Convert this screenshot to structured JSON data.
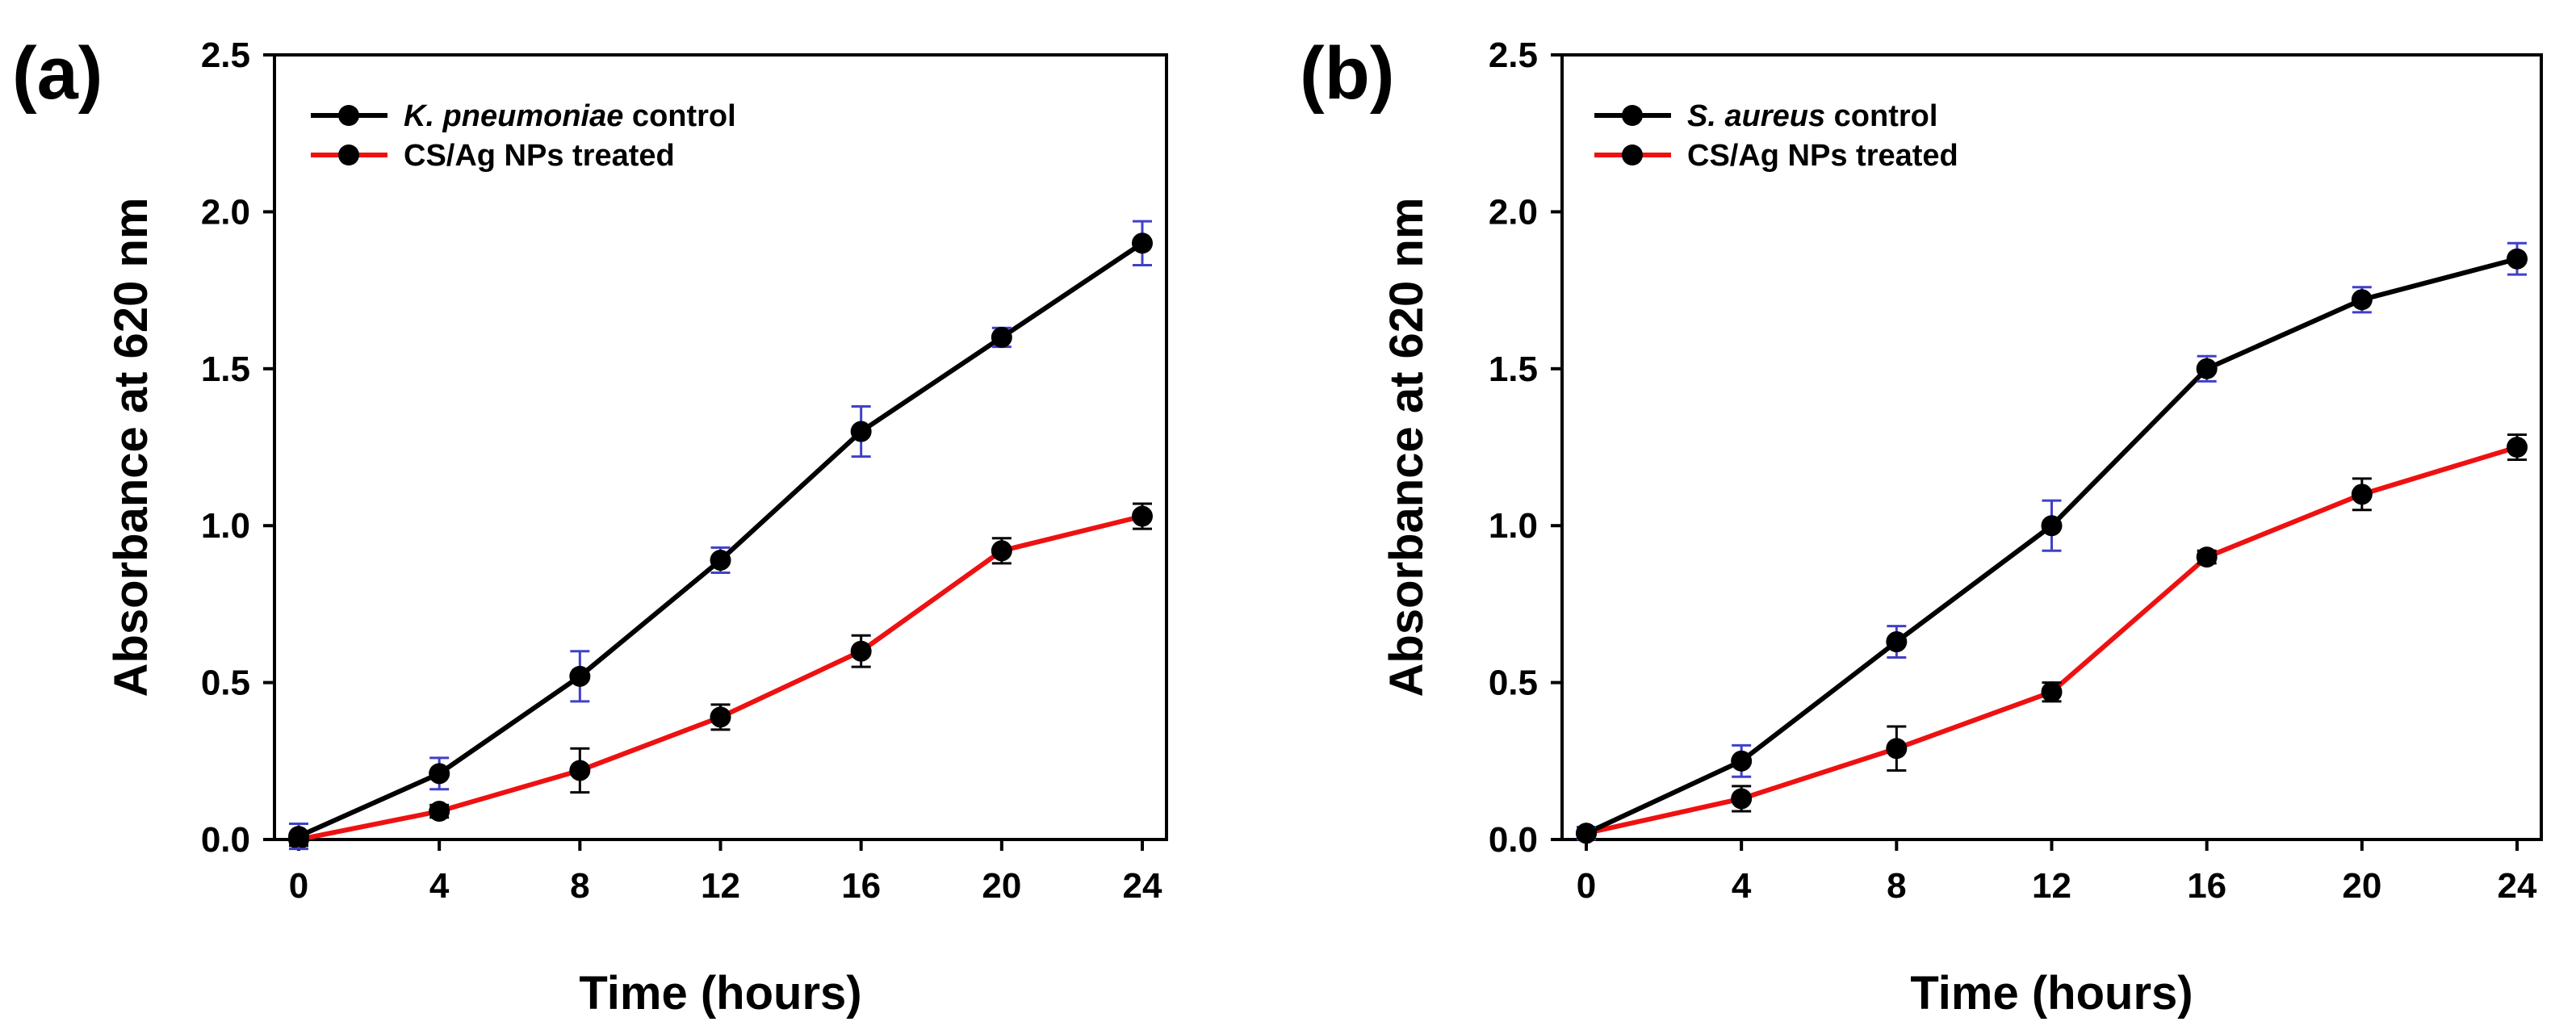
{
  "chart_data": [
    {
      "type": "line",
      "panel_label": "(a)",
      "xlabel": "Time (hours)",
      "ylabel": "Absorbance at 620 nm",
      "xlim": [
        0,
        24
      ],
      "ylim": [
        0,
        2.5
      ],
      "x": [
        0,
        4,
        8,
        12,
        16,
        20,
        24
      ],
      "xticks": [
        "0",
        "4",
        "8",
        "12",
        "16",
        "20",
        "24"
      ],
      "yticks": [
        "0.0",
        "0.5",
        "1.0",
        "1.5",
        "2.0",
        "2.5"
      ],
      "legend_position": "top-left",
      "series": [
        {
          "name": "K. pneumoniae control",
          "name_italic": "K. pneumoniae",
          "name_rest": " control",
          "color": "#000000",
          "error_color": "#4040c8",
          "values": [
            0.01,
            0.21,
            0.52,
            0.89,
            1.3,
            1.6,
            1.9
          ],
          "errors": [
            0.04,
            0.05,
            0.08,
            0.04,
            0.08,
            0.03,
            0.07
          ]
        },
        {
          "name": "CS/Ag NPs treated",
          "name_italic": "",
          "name_rest": "CS/Ag NPs treated",
          "color": "#ee1111",
          "error_color": "#000000",
          "values": [
            0.0,
            0.09,
            0.22,
            0.39,
            0.6,
            0.92,
            1.03
          ],
          "errors": [
            0.02,
            0.02,
            0.07,
            0.04,
            0.05,
            0.04,
            0.04
          ]
        }
      ]
    },
    {
      "type": "line",
      "panel_label": "(b)",
      "xlabel": "Time (hours)",
      "ylabel": "Absorbance at 620 nm",
      "xlim": [
        0,
        24
      ],
      "ylim": [
        0,
        2.5
      ],
      "x": [
        0,
        4,
        8,
        12,
        16,
        20,
        24
      ],
      "xticks": [
        "0",
        "4",
        "8",
        "12",
        "16",
        "20",
        "24"
      ],
      "yticks": [
        "0.0",
        "0.5",
        "1.0",
        "1.5",
        "2.0",
        "2.5"
      ],
      "legend_position": "top-left",
      "series": [
        {
          "name": "S. aureus control",
          "name_italic": "S. aureus",
          "name_rest": " control",
          "color": "#000000",
          "error_color": "#4040c8",
          "values": [
            0.02,
            0.25,
            0.63,
            1.0,
            1.5,
            1.72,
            1.85
          ],
          "errors": [
            0.02,
            0.05,
            0.05,
            0.08,
            0.04,
            0.04,
            0.05
          ]
        },
        {
          "name": "CS/Ag NPs treated",
          "name_italic": "",
          "name_rest": "CS/Ag NPs treated",
          "color": "#ee1111",
          "error_color": "#000000",
          "values": [
            0.02,
            0.13,
            0.29,
            0.47,
            0.9,
            1.1,
            1.25
          ],
          "errors": [
            0.02,
            0.04,
            0.07,
            0.03,
            0.02,
            0.05,
            0.04
          ]
        }
      ]
    }
  ]
}
